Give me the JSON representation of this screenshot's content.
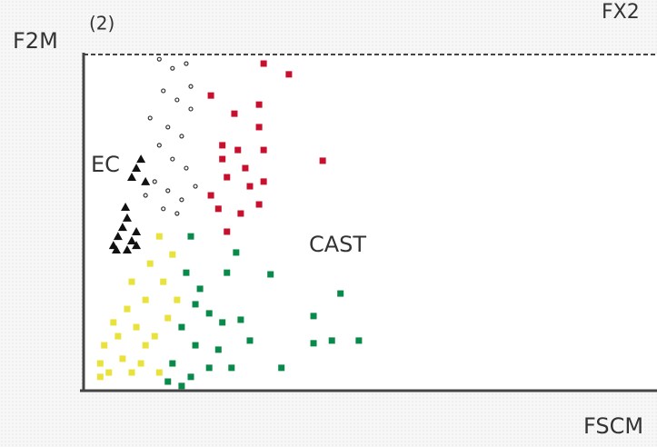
{
  "chart_data": {
    "type": "scatter",
    "panel_label": "(2)",
    "corner_label": "FX2",
    "xlabel": "FSCM",
    "ylabel": "F2M",
    "annotations": [
      "EC",
      "CAST"
    ],
    "xlim": [
      0,
      100
    ],
    "ylim": [
      0,
      100
    ],
    "series": [
      {
        "color": "#e8e23a",
        "marker": "square",
        "x": [
          2.9,
          3.6,
          4.4,
          6.0,
          6.8,
          7.6,
          8.4,
          9.2,
          10.0,
          10.8,
          11.6,
          12.4,
          13.2,
          13.9,
          14.7,
          5.2,
          8.4,
          10.8,
          15.5,
          13.2,
          2.9,
          16.3
        ],
        "y": [
          8.1,
          13.5,
          5.4,
          16.2,
          9.5,
          24.3,
          32.4,
          18.9,
          8.1,
          27.0,
          37.8,
          16.2,
          45.9,
          32.4,
          21.6,
          20.3,
          5.4,
          13.5,
          40.5,
          5.4,
          4.1,
          27.0
        ]
      },
      {
        "color": "#111111",
        "marker": "triangle",
        "x": [
          5.2,
          6.0,
          6.8,
          7.6,
          8.4,
          9.2,
          5.7,
          7.3,
          9.2,
          10.0,
          8.4,
          10.8,
          9.2,
          7.6
        ],
        "y": [
          43.2,
          45.9,
          48.6,
          51.4,
          44.6,
          47.3,
          41.9,
          54.6,
          66.2,
          68.9,
          63.5,
          62.2,
          43.2,
          41.9
        ]
      },
      {
        "color": "#333333",
        "marker": "circle-open",
        "x": [
          13.2,
          15.5,
          17.9,
          13.9,
          16.3,
          18.7,
          11.6,
          14.7,
          17.1,
          13.2,
          15.5,
          17.9,
          12.4,
          14.7,
          17.1,
          19.5,
          13.9,
          16.3,
          10.8,
          18.7
        ],
        "y": [
          98.6,
          95.9,
          97.3,
          89.2,
          86.5,
          83.8,
          81.1,
          78.4,
          75.7,
          73.0,
          68.9,
          66.2,
          62.2,
          59.5,
          56.8,
          60.8,
          54.1,
          52.7,
          58.1,
          90.5
        ]
      },
      {
        "color": "#c8102e",
        "marker": "square",
        "x": [
          31.4,
          35.8,
          22.2,
          26.3,
          30.6,
          24.2,
          26.9,
          30.6,
          31.4,
          41.7,
          25.0,
          28.2,
          31.4,
          23.5,
          27.4,
          30.6,
          25.0,
          22.2,
          24.2,
          29.0
        ],
        "y": [
          97.3,
          94.1,
          87.8,
          82.4,
          85.1,
          73.0,
          71.6,
          78.4,
          71.6,
          68.4,
          63.5,
          66.2,
          62.2,
          54.1,
          52.7,
          55.4,
          47.3,
          58.1,
          68.9,
          60.8
        ]
      },
      {
        "color": "#0a8a4a",
        "marker": "square",
        "x": [
          18.7,
          17.9,
          26.6,
          32.6,
          44.8,
          40.1,
          20.3,
          21.9,
          17.1,
          19.5,
          24.2,
          27.4,
          29.0,
          15.5,
          18.7,
          21.9,
          25.8,
          34.5,
          40.1,
          43.3,
          48.0,
          14.7,
          17.1,
          23.5,
          25.0,
          19.5
        ],
        "y": [
          45.9,
          35.1,
          41.1,
          34.6,
          28.9,
          22.2,
          30.3,
          23.0,
          18.9,
          13.5,
          20.3,
          21.1,
          14.9,
          8.1,
          4.1,
          6.8,
          6.8,
          6.8,
          14.1,
          14.9,
          14.9,
          2.7,
          1.4,
          12.2,
          35.1,
          25.7
        ]
      }
    ]
  }
}
